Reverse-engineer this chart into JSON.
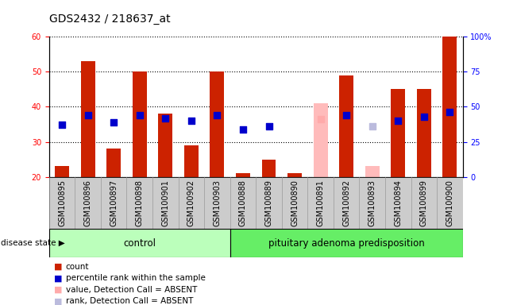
{
  "title": "GDS2432 / 218637_at",
  "samples": [
    "GSM100895",
    "GSM100896",
    "GSM100897",
    "GSM100898",
    "GSM100901",
    "GSM100902",
    "GSM100903",
    "GSM100888",
    "GSM100889",
    "GSM100890",
    "GSM100891",
    "GSM100892",
    "GSM100893",
    "GSM100894",
    "GSM100899",
    "GSM100900"
  ],
  "bar_values": [
    23,
    53,
    28,
    50,
    38,
    29,
    50,
    21,
    25,
    21,
    41,
    49,
    23,
    45,
    45,
    60
  ],
  "bar_colors": [
    "#cc2200",
    "#cc2200",
    "#cc2200",
    "#cc2200",
    "#cc2200",
    "#cc2200",
    "#cc2200",
    "#cc2200",
    "#cc2200",
    "#cc2200",
    "#ffbbbb",
    "#cc2200",
    "#ffbbbb",
    "#cc2200",
    "#cc2200",
    "#cc2200"
  ],
  "dot_values": [
    37,
    44,
    39,
    44,
    42,
    40,
    44,
    34,
    36,
    null,
    41,
    44,
    36,
    40,
    43,
    46
  ],
  "dot_colors": [
    "#0000cc",
    "#0000cc",
    "#0000cc",
    "#0000cc",
    "#0000cc",
    "#0000cc",
    "#0000cc",
    "#0000cc",
    "#0000cc",
    null,
    "#ffaaaa",
    "#0000cc",
    "#bbbbdd",
    "#0000cc",
    "#0000cc",
    "#0000cc"
  ],
  "ylim_left": [
    20,
    60
  ],
  "ylim_right": [
    0,
    100
  ],
  "yticks_left": [
    20,
    30,
    40,
    50,
    60
  ],
  "yticks_right": [
    0,
    25,
    50,
    75,
    100
  ],
  "ytick_labels_right": [
    "0",
    "25",
    "50",
    "75",
    "100%"
  ],
  "control_count": 7,
  "group1_label": "control",
  "group2_label": "pituitary adenoma predisposition",
  "disease_state_label": "disease state",
  "legend_items": [
    {
      "label": "count",
      "color": "#cc2200"
    },
    {
      "label": "percentile rank within the sample",
      "color": "#0000cc"
    },
    {
      "label": "value, Detection Call = ABSENT",
      "color": "#ffaaaa"
    },
    {
      "label": "rank, Detection Call = ABSENT",
      "color": "#bbbbdd"
    }
  ],
  "bar_width": 0.55,
  "dot_size": 28,
  "background_color": "#ffffff",
  "grid_color": "#000000",
  "title_fontsize": 10,
  "tick_fontsize": 7,
  "label_fontsize": 8.5
}
